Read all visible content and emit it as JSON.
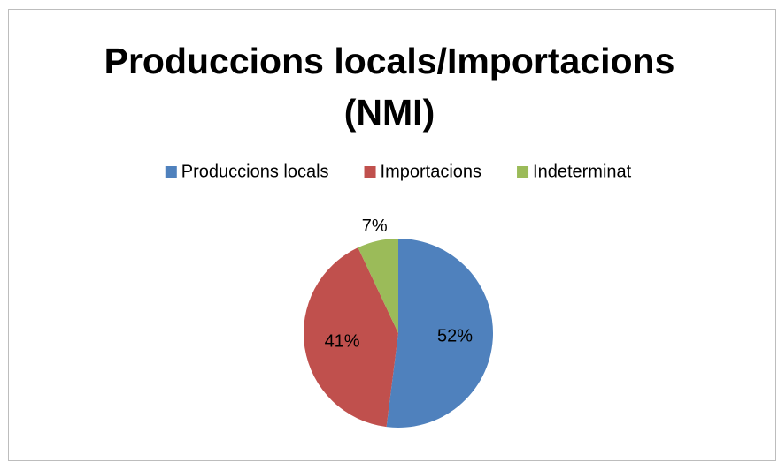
{
  "chart_data": {
    "type": "pie",
    "title": "Produccions locals/Importacions (NMI)",
    "categories": [
      "Produccions locals",
      "Importacions",
      "Indeterminat"
    ],
    "values": [
      52,
      41,
      7
    ],
    "value_labels": [
      "52%",
      "41%",
      "7%"
    ],
    "colors": [
      "#4f81bd",
      "#c0504d",
      "#9bbb59"
    ],
    "legend": "top"
  }
}
